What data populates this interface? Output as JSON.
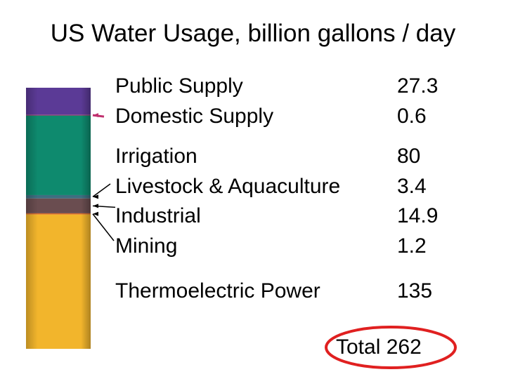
{
  "chart_data": {
    "type": "bar",
    "title": "US Water Usage, billion gallons / day",
    "stacked": true,
    "orientation": "vertical",
    "stack_order_bottom_to_top": [
      "Thermoelectric Power",
      "Mining",
      "Industrial",
      "Livestock & Aquaculture",
      "Irrigation",
      "Domestic Supply",
      "Public Supply"
    ],
    "categories": [
      "Public Supply",
      "Domestic Supply",
      "Irrigation",
      "Livestock & Aquaculture",
      "Industrial",
      "Mining",
      "Thermoelectric Power"
    ],
    "values": [
      27.3,
      0.6,
      80,
      3.4,
      14.9,
      1.2,
      135
    ],
    "value_labels": [
      "27.3",
      "0.6",
      "80",
      "3.4",
      "14.9",
      "1.2",
      "135"
    ],
    "colors": [
      "#5b3a96",
      "#c0306e",
      "#0e8a6e",
      "#3e6e80",
      "#6a4d50",
      "#d86a2a",
      "#f2b52c"
    ],
    "total_label": "Total",
    "total_value": "262",
    "total_highlight_color": "#e02020",
    "xlabel": "",
    "ylabel": "",
    "grid": false,
    "legend": "right"
  }
}
